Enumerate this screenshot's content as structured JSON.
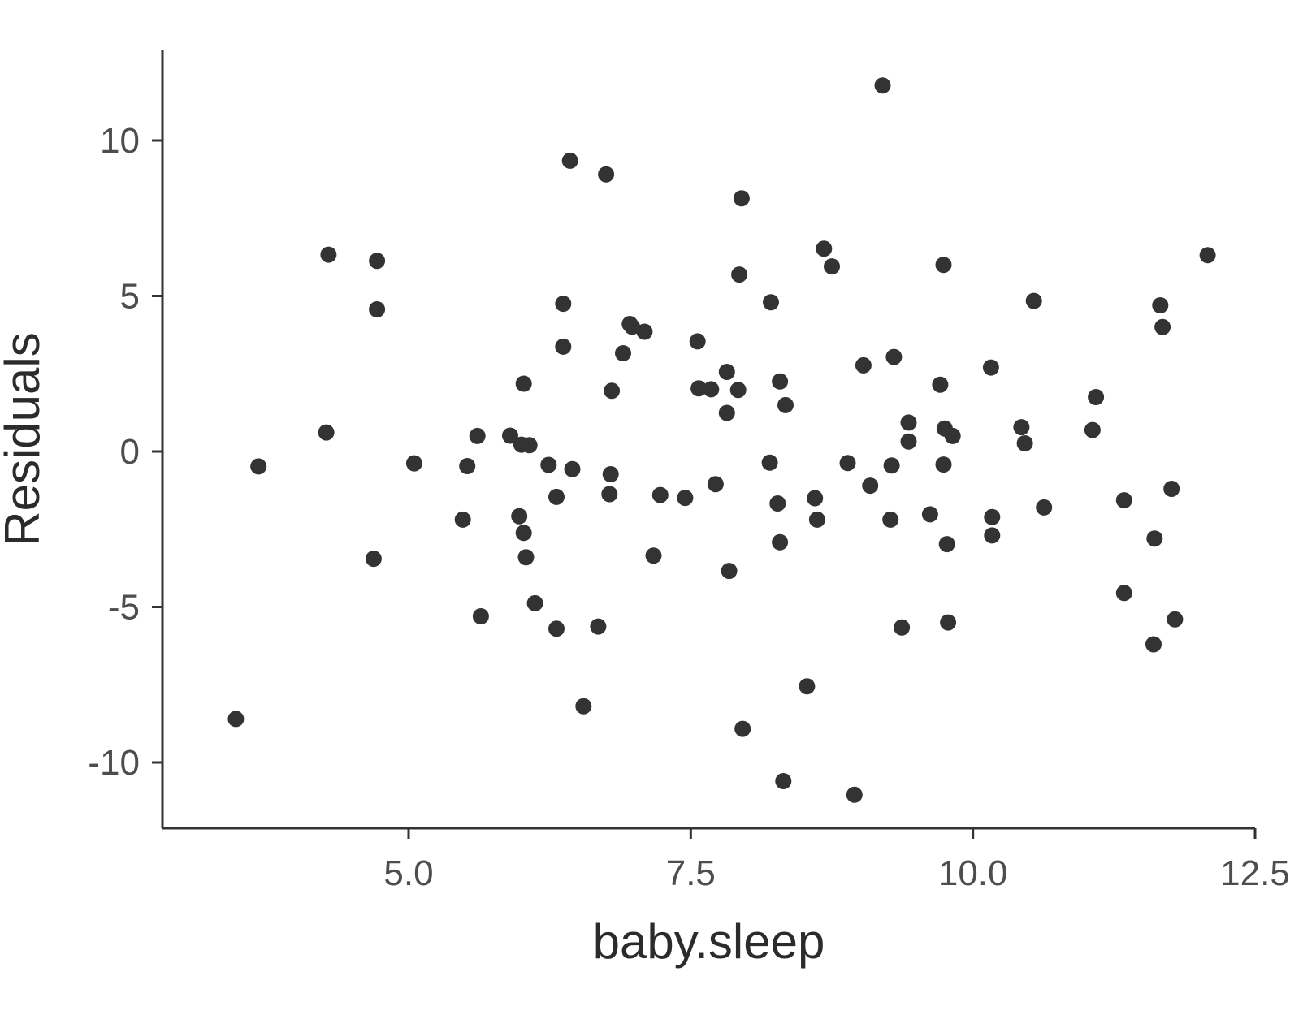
{
  "chart_data": {
    "type": "scatter",
    "title": "",
    "xlabel": "baby.sleep",
    "ylabel": "Residuals",
    "xlim": [
      3.0,
      12.5
    ],
    "ylim": [
      -12.0,
      13.0
    ],
    "x_ticks": [
      {
        "value": 5.0,
        "label": "5.0"
      },
      {
        "value": 7.5,
        "label": "7.5"
      },
      {
        "value": 10.0,
        "label": "10.0"
      },
      {
        "value": 12.5,
        "label": "12.5"
      }
    ],
    "y_ticks": [
      {
        "value": -10,
        "label": "-10"
      },
      {
        "value": -5,
        "label": "-5"
      },
      {
        "value": 0,
        "label": "0"
      },
      {
        "value": 5,
        "label": "5"
      },
      {
        "value": 10,
        "label": "10"
      }
    ],
    "grid": false,
    "legend": "none",
    "point_color": "#333333",
    "axis_color": "#333333",
    "points": [
      {
        "x": 3.47,
        "y": -8.6
      },
      {
        "x": 3.67,
        "y": -0.48
      },
      {
        "x": 4.27,
        "y": 0.61
      },
      {
        "x": 4.29,
        "y": 6.33
      },
      {
        "x": 4.69,
        "y": -3.45
      },
      {
        "x": 4.72,
        "y": 6.13
      },
      {
        "x": 4.72,
        "y": 4.57
      },
      {
        "x": 5.05,
        "y": -0.38
      },
      {
        "x": 5.48,
        "y": -2.19
      },
      {
        "x": 5.52,
        "y": -0.47
      },
      {
        "x": 5.61,
        "y": 0.5
      },
      {
        "x": 5.64,
        "y": -5.3
      },
      {
        "x": 5.9,
        "y": 0.51
      },
      {
        "x": 5.98,
        "y": -2.08
      },
      {
        "x": 6.0,
        "y": 0.22
      },
      {
        "x": 6.02,
        "y": -2.62
      },
      {
        "x": 6.02,
        "y": 2.18
      },
      {
        "x": 6.04,
        "y": -3.4
      },
      {
        "x": 6.07,
        "y": 0.2
      },
      {
        "x": 6.12,
        "y": -4.88
      },
      {
        "x": 6.24,
        "y": -0.43
      },
      {
        "x": 6.31,
        "y": -5.7
      },
      {
        "x": 6.31,
        "y": -1.46
      },
      {
        "x": 6.37,
        "y": 4.75
      },
      {
        "x": 6.37,
        "y": 3.37
      },
      {
        "x": 6.43,
        "y": 9.35
      },
      {
        "x": 6.45,
        "y": -0.57
      },
      {
        "x": 6.55,
        "y": -8.19
      },
      {
        "x": 6.68,
        "y": -5.63
      },
      {
        "x": 6.75,
        "y": 8.91
      },
      {
        "x": 6.78,
        "y": -1.37
      },
      {
        "x": 6.79,
        "y": -0.73
      },
      {
        "x": 6.8,
        "y": 1.95
      },
      {
        "x": 6.9,
        "y": 3.16
      },
      {
        "x": 6.96,
        "y": 4.1
      },
      {
        "x": 6.98,
        "y": 4.01
      },
      {
        "x": 7.09,
        "y": 3.85
      },
      {
        "x": 7.17,
        "y": -3.35
      },
      {
        "x": 7.23,
        "y": -1.4
      },
      {
        "x": 7.45,
        "y": -1.49
      },
      {
        "x": 7.56,
        "y": 3.54
      },
      {
        "x": 7.57,
        "y": 2.03
      },
      {
        "x": 7.68,
        "y": 2.0
      },
      {
        "x": 7.72,
        "y": -1.05
      },
      {
        "x": 7.82,
        "y": 2.56
      },
      {
        "x": 7.82,
        "y": 1.24
      },
      {
        "x": 7.84,
        "y": -3.84
      },
      {
        "x": 7.92,
        "y": 1.98
      },
      {
        "x": 7.93,
        "y": 5.69
      },
      {
        "x": 7.95,
        "y": 8.14
      },
      {
        "x": 7.96,
        "y": -8.92
      },
      {
        "x": 8.2,
        "y": -0.36
      },
      {
        "x": 8.21,
        "y": 4.8
      },
      {
        "x": 8.27,
        "y": -1.67
      },
      {
        "x": 8.29,
        "y": -2.92
      },
      {
        "x": 8.29,
        "y": 2.25
      },
      {
        "x": 8.32,
        "y": -10.6
      },
      {
        "x": 8.34,
        "y": 1.49
      },
      {
        "x": 8.53,
        "y": -7.55
      },
      {
        "x": 8.6,
        "y": -1.5
      },
      {
        "x": 8.62,
        "y": -2.19
      },
      {
        "x": 8.68,
        "y": 6.52
      },
      {
        "x": 8.75,
        "y": 5.95
      },
      {
        "x": 8.89,
        "y": -0.37
      },
      {
        "x": 8.95,
        "y": -11.04
      },
      {
        "x": 9.03,
        "y": 2.77
      },
      {
        "x": 9.09,
        "y": -1.1
      },
      {
        "x": 9.2,
        "y": 11.77
      },
      {
        "x": 9.27,
        "y": -2.19
      },
      {
        "x": 9.28,
        "y": -0.45
      },
      {
        "x": 9.3,
        "y": 3.04
      },
      {
        "x": 9.37,
        "y": -5.66
      },
      {
        "x": 9.43,
        "y": 0.93
      },
      {
        "x": 9.43,
        "y": 0.32
      },
      {
        "x": 9.62,
        "y": -2.02
      },
      {
        "x": 9.71,
        "y": 2.15
      },
      {
        "x": 9.74,
        "y": 6.0
      },
      {
        "x": 9.74,
        "y": -0.42
      },
      {
        "x": 9.75,
        "y": 0.74
      },
      {
        "x": 9.77,
        "y": -2.98
      },
      {
        "x": 9.78,
        "y": -5.5
      },
      {
        "x": 9.82,
        "y": 0.5
      },
      {
        "x": 10.16,
        "y": 2.7
      },
      {
        "x": 10.17,
        "y": -2.11
      },
      {
        "x": 10.17,
        "y": -2.7
      },
      {
        "x": 10.43,
        "y": 0.78
      },
      {
        "x": 10.46,
        "y": 0.26
      },
      {
        "x": 10.54,
        "y": 4.84
      },
      {
        "x": 10.63,
        "y": -1.8
      },
      {
        "x": 11.06,
        "y": 0.69
      },
      {
        "x": 11.09,
        "y": 1.75
      },
      {
        "x": 11.34,
        "y": -1.57
      },
      {
        "x": 11.34,
        "y": -4.55
      },
      {
        "x": 11.6,
        "y": -6.2
      },
      {
        "x": 11.61,
        "y": -2.8
      },
      {
        "x": 11.66,
        "y": 4.7
      },
      {
        "x": 11.68,
        "y": 4.0
      },
      {
        "x": 11.76,
        "y": -1.2
      },
      {
        "x": 11.79,
        "y": -5.4
      },
      {
        "x": 12.08,
        "y": 6.31
      }
    ]
  }
}
